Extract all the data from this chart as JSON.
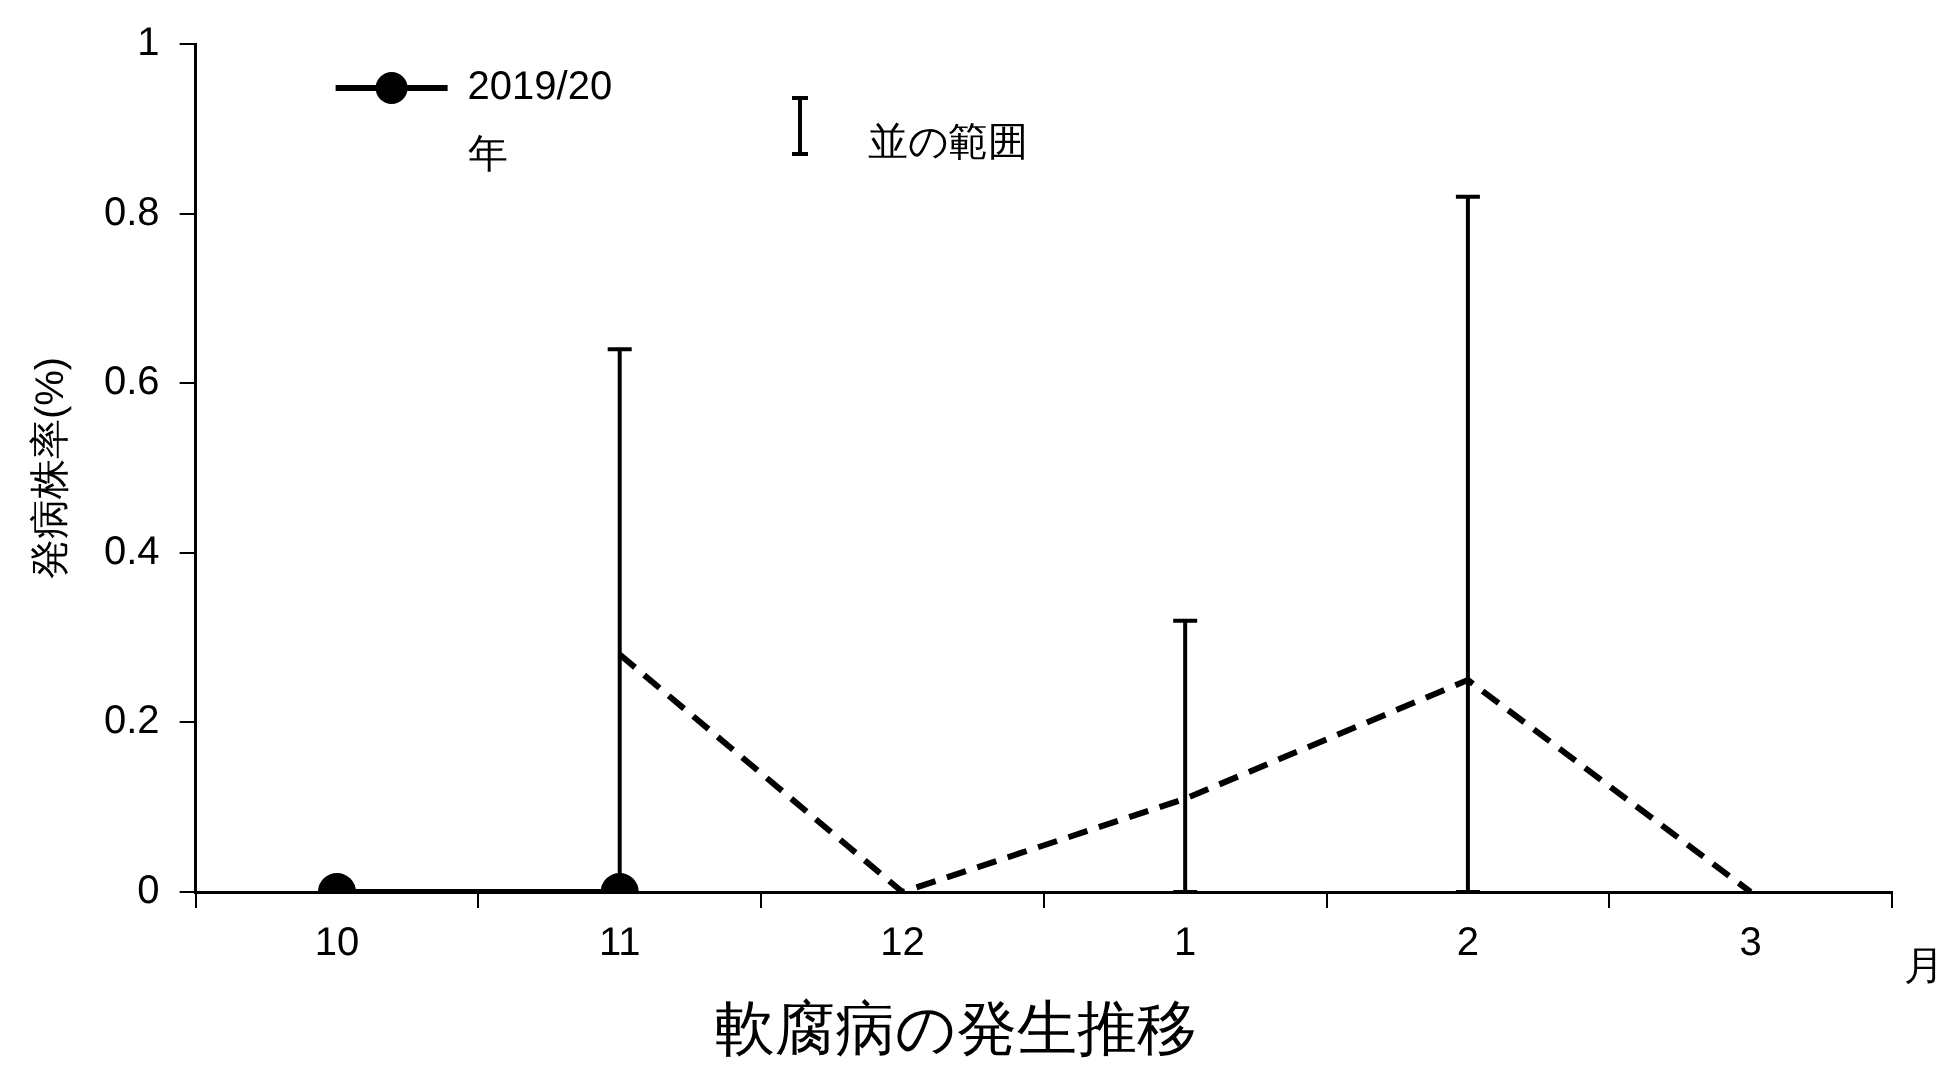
{
  "chart_data": {
    "type": "line",
    "title": "軟腐病の発生推移",
    "xlabel": "月",
    "ylabel": "発病株率(%)",
    "annotations": [
      "並の範囲"
    ],
    "categories": [
      "10",
      "11",
      "12",
      "1",
      "2",
      "3"
    ],
    "series": [
      {
        "name": "2019/20年",
        "color": "#000000",
        "marker": "circle",
        "line_style": "solid",
        "values": [
          0,
          0,
          null,
          null,
          null,
          null
        ]
      },
      {
        "color": "#000000",
        "marker": "none",
        "line_style": "dashed",
        "values": [
          null,
          0.28,
          0,
          0.11,
          0.25,
          0
        ],
        "errors": [
          null,
          [
            0,
            0.64
          ],
          null,
          [
            0,
            0.32
          ],
          [
            0,
            0.82
          ],
          null
        ]
      }
    ],
    "ylim": [
      0,
      1
    ],
    "yticks": [
      0,
      0.2,
      0.4,
      0.6,
      0.8,
      1
    ],
    "grid": false,
    "legend": "top left"
  }
}
